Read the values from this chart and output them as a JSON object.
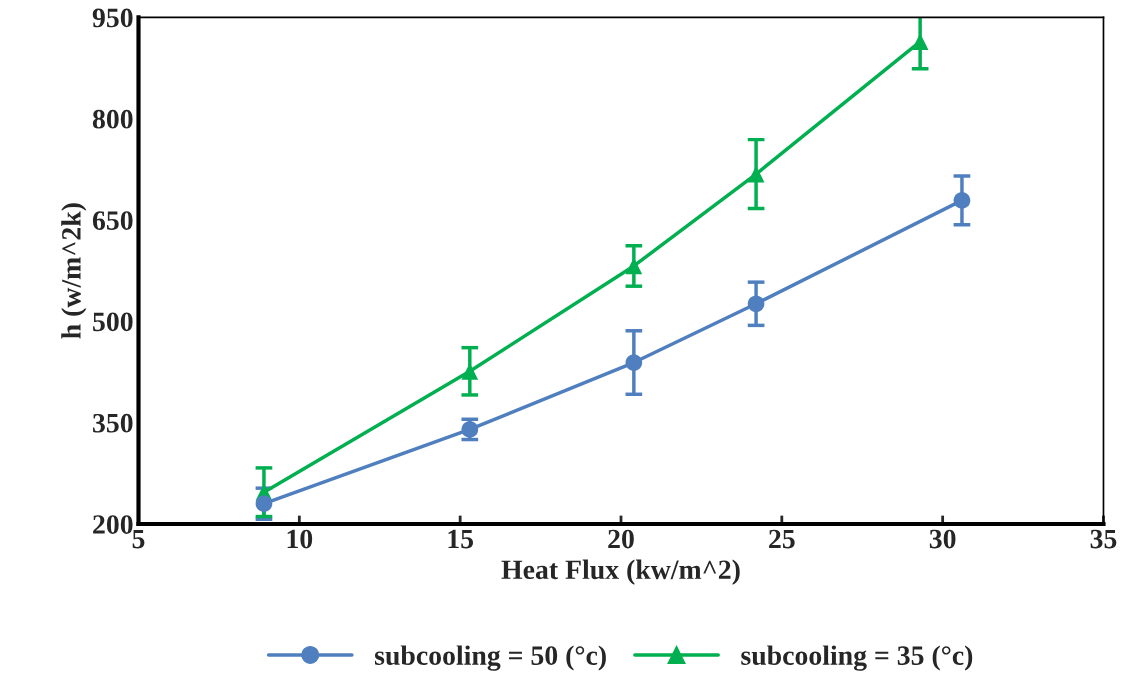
{
  "chart_data": {
    "type": "line",
    "xlabel": "Heat Flux (kw/m^2)",
    "ylabel": "h (w/m^2k)",
    "xlim": [
      5,
      35
    ],
    "xticks": [
      5,
      10,
      15,
      20,
      25,
      30,
      35
    ],
    "ylim": [
      200,
      950
    ],
    "yticks": [
      200,
      350,
      500,
      650,
      800,
      950
    ],
    "grid": false,
    "legend": "bottom",
    "series": [
      {
        "name": "subcooling = 50 (°c)",
        "color": "#4f7fbf",
        "marker": "circle",
        "x": [
          8.9,
          15.3,
          20.4,
          24.2,
          30.6
        ],
        "values": [
          230,
          340,
          439,
          526,
          679
        ],
        "errors": [
          23,
          15,
          47,
          32,
          36
        ]
      },
      {
        "name": "subcooling = 35 (°c)",
        "color": "#00b050",
        "marker": "triangle",
        "x": [
          8.9,
          15.3,
          20.4,
          24.2,
          29.3
        ],
        "values": [
          247,
          426,
          582,
          718,
          914
        ],
        "errors": [
          36,
          35,
          30,
          51,
          40
        ]
      }
    ]
  }
}
